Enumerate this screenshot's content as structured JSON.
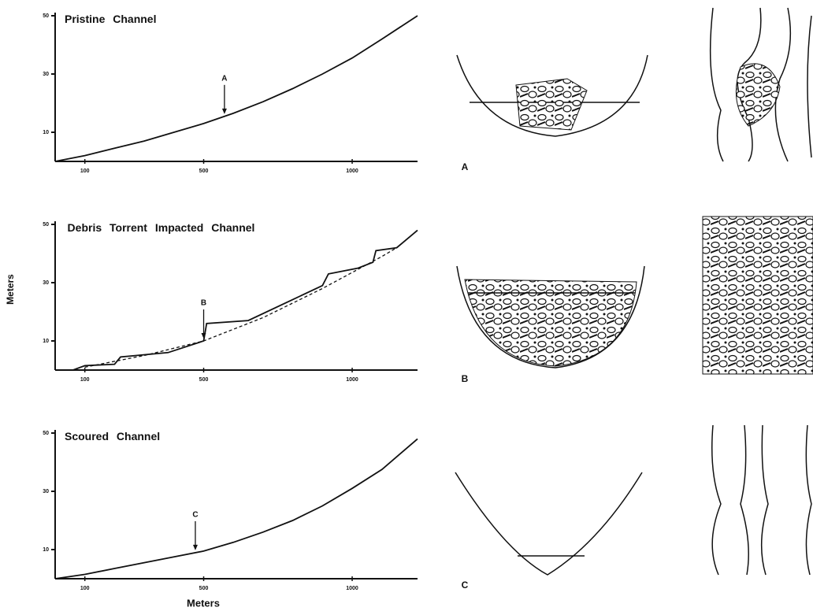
{
  "chart_data": [
    {
      "type": "line",
      "title": "Pristine Channel",
      "annotations": [
        "A"
      ],
      "x": [
        0,
        100,
        200,
        300,
        400,
        500,
        600,
        700,
        800,
        900,
        1000,
        1100,
        1220
      ],
      "series": [
        {
          "color": "#111111",
          "values": [
            0,
            2,
            4.5,
            7,
            10,
            13,
            16.5,
            20.5,
            25,
            30,
            35.5,
            42,
            50
          ]
        }
      ],
      "xlim": [
        0,
        1220
      ],
      "ylim": [
        0,
        50
      ],
      "xticks": [
        100,
        500,
        1000
      ],
      "yticks": [
        10,
        30,
        50
      ]
    },
    {
      "type": "line",
      "title": "Debris Torrent Impacted Channel",
      "annotations": [
        "B"
      ],
      "ylabel": "Meters",
      "series": [
        {
          "color": "#111111",
          "dash": false,
          "x": [
            60,
            100,
            200,
            220,
            380,
            500,
            510,
            650,
            900,
            920,
            1020,
            1070,
            1080,
            1150,
            1220
          ],
          "values": [
            0,
            1.5,
            2,
            4.5,
            6,
            10,
            16,
            17,
            29,
            33,
            35,
            37,
            41,
            42,
            48
          ]
        },
        {
          "color": "#111111",
          "dash": true,
          "x": [
            100,
            300,
            500,
            700,
            900,
            1100,
            1150
          ],
          "values": [
            1,
            5,
            10,
            18,
            28,
            39,
            42
          ]
        }
      ],
      "xlim": [
        0,
        1220
      ],
      "ylim": [
        0,
        50
      ],
      "xticks": [
        100,
        500,
        1000
      ],
      "yticks": [
        10,
        30,
        50
      ]
    },
    {
      "type": "line",
      "title": "Scoured Channel",
      "annotations": [
        "C"
      ],
      "xlabel": "Meters",
      "x": [
        0,
        100,
        200,
        300,
        400,
        500,
        600,
        700,
        800,
        900,
        1000,
        1100,
        1220
      ],
      "series": [
        {
          "color": "#111111",
          "values": [
            0,
            1.5,
            3.5,
            5.5,
            7.5,
            9.5,
            12.5,
            16,
            20,
            25,
            31,
            37.5,
            48
          ]
        }
      ],
      "xlim": [
        0,
        1220
      ],
      "ylim": [
        0,
        50
      ],
      "xticks": [
        100,
        500,
        1000
      ],
      "yticks": [
        10,
        30,
        50
      ]
    }
  ],
  "drawings": {
    "labels": [
      "A",
      "B",
      "C"
    ]
  }
}
